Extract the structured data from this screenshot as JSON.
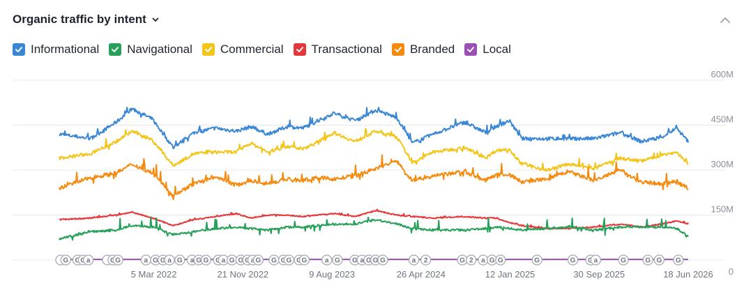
{
  "header": {
    "title": "Organic traffic by intent"
  },
  "legend": [
    {
      "label": "Informational",
      "color": "#3a87d6",
      "checked": true
    },
    {
      "label": "Navigational",
      "color": "#27a05a",
      "checked": true
    },
    {
      "label": "Commercial",
      "color": "#f3c51b",
      "checked": true
    },
    {
      "label": "Transactional",
      "color": "#e4373a",
      "checked": true
    },
    {
      "label": "Branded",
      "color": "#f68a0f",
      "checked": true
    },
    {
      "label": "Local",
      "color": "#9b4fb5",
      "checked": true
    }
  ],
  "icons": {
    "title_dropdown": "chevron-down-icon",
    "collapse": "chevron-up-icon",
    "checkbox": "check-icon"
  },
  "chart_data": {
    "type": "line",
    "x_range": [
      "2021-06-01",
      "2026-06-18"
    ],
    "ylim": [
      0,
      600000000
    ],
    "yticks": [
      {
        "value": 600000000,
        "label": "600M"
      },
      {
        "value": 450000000,
        "label": "450M"
      },
      {
        "value": 300000000,
        "label": "300M"
      },
      {
        "value": 150000000,
        "label": "150M"
      },
      {
        "value": 0,
        "label": "0"
      }
    ],
    "xticks": [
      {
        "date": "2022-03-05",
        "label": "5 Mar 2022"
      },
      {
        "date": "2022-11-21",
        "label": "21 Nov 2022"
      },
      {
        "date": "2023-08-09",
        "label": "9 Aug 2023"
      },
      {
        "date": "2024-04-26",
        "label": "26 Apr 2024"
      },
      {
        "date": "2025-01-12",
        "label": "12 Jan 2025"
      },
      {
        "date": "2025-09-30",
        "label": "30 Sep 2025"
      },
      {
        "date": "2026-06-18",
        "label": "18 Jun 2026"
      }
    ],
    "grid": true,
    "legend_position": "top",
    "series": [
      {
        "name": "Informational",
        "color": "#3a87d6",
        "points": [
          [
            "2021-06-01",
            420000000
          ],
          [
            "2021-09-01",
            405000000
          ],
          [
            "2021-11-15",
            460000000
          ],
          [
            "2022-01-01",
            505000000
          ],
          [
            "2022-03-01",
            470000000
          ],
          [
            "2022-05-01",
            375000000
          ],
          [
            "2022-07-01",
            425000000
          ],
          [
            "2022-09-01",
            440000000
          ],
          [
            "2022-11-01",
            430000000
          ],
          [
            "2022-12-15",
            445000000
          ],
          [
            "2023-02-01",
            420000000
          ],
          [
            "2023-04-01",
            445000000
          ],
          [
            "2023-05-15",
            440000000
          ],
          [
            "2023-07-01",
            465000000
          ],
          [
            "2023-08-15",
            490000000
          ],
          [
            "2023-10-15",
            465000000
          ],
          [
            "2023-12-15",
            500000000
          ],
          [
            "2024-02-15",
            475000000
          ],
          [
            "2024-04-01",
            390000000
          ],
          [
            "2024-06-01",
            420000000
          ],
          [
            "2024-09-01",
            460000000
          ],
          [
            "2024-11-01",
            425000000
          ],
          [
            "2024-12-01",
            445000000
          ],
          [
            "2025-01-10",
            465000000
          ],
          [
            "2025-02-15",
            405000000
          ],
          [
            "2025-05-01",
            405000000
          ],
          [
            "2025-07-01",
            405000000
          ],
          [
            "2025-09-15",
            405000000
          ],
          [
            "2025-12-01",
            425000000
          ],
          [
            "2026-02-01",
            395000000
          ],
          [
            "2026-04-01",
            410000000
          ],
          [
            "2026-05-15",
            440000000
          ],
          [
            "2026-06-18",
            395000000
          ]
        ]
      },
      {
        "name": "Commercial",
        "color": "#f3c51b",
        "points": [
          [
            "2021-06-01",
            340000000
          ],
          [
            "2021-09-01",
            355000000
          ],
          [
            "2021-11-15",
            395000000
          ],
          [
            "2022-01-01",
            430000000
          ],
          [
            "2022-03-01",
            400000000
          ],
          [
            "2022-05-01",
            315000000
          ],
          [
            "2022-07-01",
            355000000
          ],
          [
            "2022-09-01",
            360000000
          ],
          [
            "2022-11-01",
            360000000
          ],
          [
            "2022-12-15",
            390000000
          ],
          [
            "2023-02-01",
            360000000
          ],
          [
            "2023-04-01",
            380000000
          ],
          [
            "2023-05-15",
            370000000
          ],
          [
            "2023-07-01",
            395000000
          ],
          [
            "2023-08-15",
            425000000
          ],
          [
            "2023-10-15",
            395000000
          ],
          [
            "2023-12-15",
            430000000
          ],
          [
            "2024-02-15",
            410000000
          ],
          [
            "2024-04-01",
            325000000
          ],
          [
            "2024-06-01",
            360000000
          ],
          [
            "2024-09-01",
            375000000
          ],
          [
            "2024-11-01",
            340000000
          ],
          [
            "2024-12-01",
            365000000
          ],
          [
            "2025-01-10",
            370000000
          ],
          [
            "2025-02-15",
            320000000
          ],
          [
            "2025-05-01",
            300000000
          ],
          [
            "2025-07-01",
            320000000
          ],
          [
            "2025-09-15",
            305000000
          ],
          [
            "2025-12-01",
            340000000
          ],
          [
            "2026-02-01",
            330000000
          ],
          [
            "2026-04-01",
            350000000
          ],
          [
            "2026-05-15",
            360000000
          ],
          [
            "2026-06-18",
            320000000
          ]
        ]
      },
      {
        "name": "Branded",
        "color": "#f68a0f",
        "points": [
          [
            "2021-06-01",
            240000000
          ],
          [
            "2021-09-01",
            275000000
          ],
          [
            "2021-11-15",
            290000000
          ],
          [
            "2022-01-01",
            320000000
          ],
          [
            "2022-03-01",
            290000000
          ],
          [
            "2022-05-01",
            215000000
          ],
          [
            "2022-07-01",
            255000000
          ],
          [
            "2022-09-01",
            275000000
          ],
          [
            "2022-11-01",
            250000000
          ],
          [
            "2022-12-15",
            265000000
          ],
          [
            "2023-02-01",
            255000000
          ],
          [
            "2023-04-01",
            270000000
          ],
          [
            "2023-05-15",
            265000000
          ],
          [
            "2023-07-01",
            275000000
          ],
          [
            "2023-08-15",
            270000000
          ],
          [
            "2023-10-15",
            280000000
          ],
          [
            "2023-12-15",
            305000000
          ],
          [
            "2024-02-15",
            330000000
          ],
          [
            "2024-04-01",
            265000000
          ],
          [
            "2024-06-01",
            280000000
          ],
          [
            "2024-09-01",
            295000000
          ],
          [
            "2024-11-01",
            265000000
          ],
          [
            "2024-12-01",
            285000000
          ],
          [
            "2025-01-10",
            285000000
          ],
          [
            "2025-02-15",
            260000000
          ],
          [
            "2025-05-01",
            270000000
          ],
          [
            "2025-07-01",
            295000000
          ],
          [
            "2025-09-15",
            265000000
          ],
          [
            "2025-12-01",
            300000000
          ],
          [
            "2026-02-01",
            260000000
          ],
          [
            "2026-04-01",
            255000000
          ],
          [
            "2026-05-15",
            260000000
          ],
          [
            "2026-06-18",
            240000000
          ]
        ]
      },
      {
        "name": "Transactional",
        "color": "#e4373a",
        "points": [
          [
            "2021-06-01",
            135000000
          ],
          [
            "2021-09-01",
            140000000
          ],
          [
            "2021-11-15",
            150000000
          ],
          [
            "2022-01-01",
            160000000
          ],
          [
            "2022-03-01",
            140000000
          ],
          [
            "2022-05-01",
            115000000
          ],
          [
            "2022-07-01",
            135000000
          ],
          [
            "2022-09-01",
            145000000
          ],
          [
            "2022-11-01",
            155000000
          ],
          [
            "2022-12-15",
            140000000
          ],
          [
            "2023-02-01",
            150000000
          ],
          [
            "2023-04-01",
            150000000
          ],
          [
            "2023-05-15",
            145000000
          ],
          [
            "2023-07-01",
            150000000
          ],
          [
            "2023-08-15",
            155000000
          ],
          [
            "2023-10-15",
            145000000
          ],
          [
            "2023-12-15",
            165000000
          ],
          [
            "2024-02-15",
            150000000
          ],
          [
            "2024-04-01",
            145000000
          ],
          [
            "2024-06-01",
            140000000
          ],
          [
            "2024-09-01",
            145000000
          ],
          [
            "2024-11-01",
            140000000
          ],
          [
            "2024-12-01",
            140000000
          ],
          [
            "2025-01-10",
            125000000
          ],
          [
            "2025-02-15",
            115000000
          ],
          [
            "2025-05-01",
            105000000
          ],
          [
            "2025-07-01",
            105000000
          ],
          [
            "2025-09-15",
            110000000
          ],
          [
            "2025-12-01",
            120000000
          ],
          [
            "2026-02-01",
            110000000
          ],
          [
            "2026-04-01",
            120000000
          ],
          [
            "2026-05-15",
            130000000
          ],
          [
            "2026-06-18",
            120000000
          ]
        ]
      },
      {
        "name": "Navigational",
        "color": "#27a05a",
        "points": [
          [
            "2021-06-01",
            70000000
          ],
          [
            "2021-09-01",
            95000000
          ],
          [
            "2021-11-15",
            100000000
          ],
          [
            "2022-01-01",
            115000000
          ],
          [
            "2022-03-01",
            110000000
          ],
          [
            "2022-05-01",
            85000000
          ],
          [
            "2022-07-01",
            95000000
          ],
          [
            "2022-09-01",
            105000000
          ],
          [
            "2022-11-01",
            110000000
          ],
          [
            "2022-12-15",
            105000000
          ],
          [
            "2023-02-01",
            100000000
          ],
          [
            "2023-04-01",
            110000000
          ],
          [
            "2023-05-15",
            110000000
          ],
          [
            "2023-07-01",
            115000000
          ],
          [
            "2023-08-15",
            120000000
          ],
          [
            "2023-10-15",
            120000000
          ],
          [
            "2023-12-15",
            135000000
          ],
          [
            "2024-02-15",
            120000000
          ],
          [
            "2024-04-01",
            105000000
          ],
          [
            "2024-06-01",
            100000000
          ],
          [
            "2024-09-01",
            100000000
          ],
          [
            "2024-11-01",
            105000000
          ],
          [
            "2024-12-01",
            110000000
          ],
          [
            "2025-01-10",
            105000000
          ],
          [
            "2025-02-15",
            100000000
          ],
          [
            "2025-05-01",
            105000000
          ],
          [
            "2025-07-01",
            110000000
          ],
          [
            "2025-09-15",
            100000000
          ],
          [
            "2025-12-01",
            110000000
          ],
          [
            "2026-02-01",
            110000000
          ],
          [
            "2026-04-01",
            110000000
          ],
          [
            "2026-05-15",
            105000000
          ],
          [
            "2026-06-18",
            80000000
          ]
        ]
      },
      {
        "name": "Local",
        "color": "#9b4fb5",
        "points": [
          [
            "2021-06-01",
            2000000
          ],
          [
            "2022-06-01",
            2000000
          ],
          [
            "2023-06-01",
            2000000
          ],
          [
            "2024-06-01",
            2000000
          ],
          [
            "2025-06-01",
            2000000
          ],
          [
            "2026-06-18",
            2000000
          ]
        ]
      }
    ],
    "annotations": [
      {
        "date": "2021-06-05",
        "label": ""
      },
      {
        "date": "2021-06-20",
        "label": "G"
      },
      {
        "date": "2021-07-25",
        "label": "G"
      },
      {
        "date": "2021-08-10",
        "label": "G"
      },
      {
        "date": "2021-08-25",
        "label": "a"
      },
      {
        "date": "2021-10-20",
        "label": ""
      },
      {
        "date": "2021-11-05",
        "label": "G"
      },
      {
        "date": "2021-11-20",
        "label": "G"
      },
      {
        "date": "2022-02-10",
        "label": "a"
      },
      {
        "date": "2022-03-10",
        "label": "G"
      },
      {
        "date": "2022-04-01",
        "label": "G"
      },
      {
        "date": "2022-04-20",
        "label": "a"
      },
      {
        "date": "2022-05-20",
        "label": "G"
      },
      {
        "date": "2022-06-25",
        "label": "a"
      },
      {
        "date": "2022-07-15",
        "label": "G"
      },
      {
        "date": "2022-08-05",
        "label": "G"
      },
      {
        "date": "2022-09-10",
        "label": "G"
      },
      {
        "date": "2022-09-25",
        "label": "a"
      },
      {
        "date": "2022-10-20",
        "label": "G"
      },
      {
        "date": "2022-11-15",
        "label": "G"
      },
      {
        "date": "2022-12-05",
        "label": "G"
      },
      {
        "date": "2022-12-20",
        "label": "a"
      },
      {
        "date": "2023-01-05",
        "label": "G"
      },
      {
        "date": "2023-02-20",
        "label": "G"
      },
      {
        "date": "2023-03-20",
        "label": "G"
      },
      {
        "date": "2023-04-05",
        "label": "G"
      },
      {
        "date": "2023-05-05",
        "label": "G"
      },
      {
        "date": "2023-05-20",
        "label": "G"
      },
      {
        "date": "2023-07-25",
        "label": "a"
      },
      {
        "date": "2023-08-25",
        "label": "G"
      },
      {
        "date": "2023-10-15",
        "label": "G"
      },
      {
        "date": "2023-11-05",
        "label": "a"
      },
      {
        "date": "2023-11-25",
        "label": "G"
      },
      {
        "date": "2023-12-15",
        "label": "G"
      },
      {
        "date": "2024-01-05",
        "label": "G"
      },
      {
        "date": "2024-04-05",
        "label": "a"
      },
      {
        "date": "2024-05-10",
        "label": "2"
      },
      {
        "date": "2024-08-25",
        "label": "G"
      },
      {
        "date": "2024-09-20",
        "label": "2"
      },
      {
        "date": "2024-10-25",
        "label": "a"
      },
      {
        "date": "2024-11-20",
        "label": "G"
      },
      {
        "date": "2024-12-15",
        "label": "G"
      },
      {
        "date": "2025-04-01",
        "label": "G"
      },
      {
        "date": "2025-07-15",
        "label": "G"
      },
      {
        "date": "2025-09-05",
        "label": "G"
      },
      {
        "date": "2025-09-20",
        "label": "a"
      },
      {
        "date": "2025-12-10",
        "label": "G"
      },
      {
        "date": "2026-02-20",
        "label": "G"
      },
      {
        "date": "2026-03-25",
        "label": "G"
      },
      {
        "date": "2026-05-20",
        "label": "G"
      }
    ]
  }
}
